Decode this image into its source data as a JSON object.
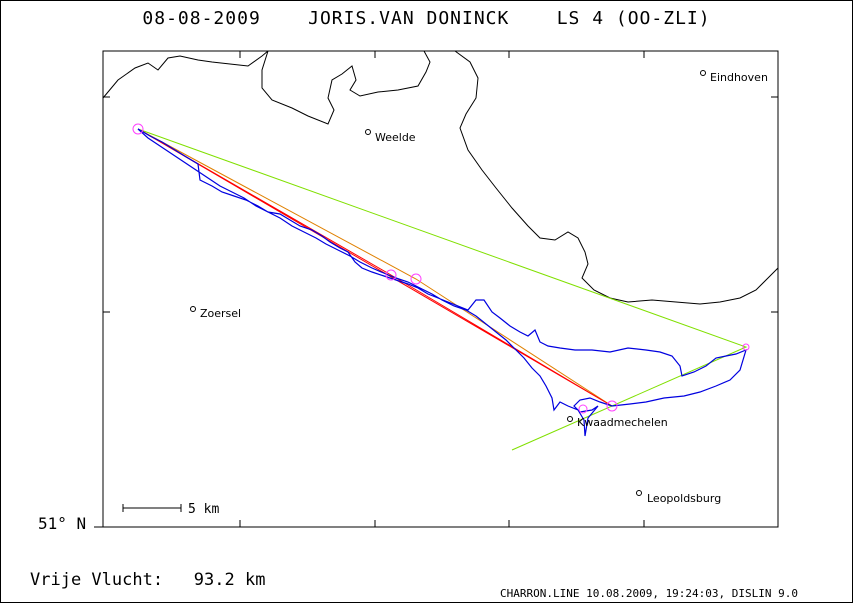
{
  "header": {
    "title": "08-08-2009    JORIS.VAN DONINCK    LS 4 (OO-ZLI)"
  },
  "axes": {
    "latitude_label": "51° N"
  },
  "scale_bar": {
    "label": "5 km"
  },
  "places": [
    {
      "name": "Eindhoven"
    },
    {
      "name": "Weelde"
    },
    {
      "name": "Zoersel"
    },
    {
      "name": "Kwaadmechelen"
    },
    {
      "name": "Leopoldsburg"
    }
  ],
  "summary": {
    "distance_label": "Vrije Vlucht:",
    "distance_value": "93.2 km"
  },
  "footer": {
    "text": "CHARRON.LINE 10.08.2009, 19:24:03, DISLIN 9.0"
  },
  "colors": {
    "border": "#6b3e1a",
    "track": "#0000e0",
    "task_free": "#80e000",
    "task_red": "#ff0000",
    "task_orange": "#e08000",
    "turnpoint": "#ff40ff"
  }
}
